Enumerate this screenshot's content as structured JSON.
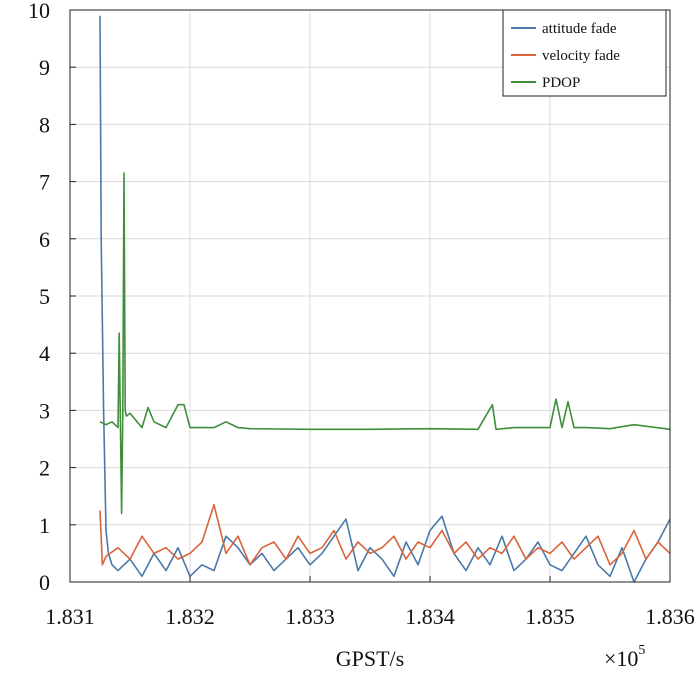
{
  "chart_data": {
    "type": "line",
    "xlabel": "GPST/s",
    "ylabel": "",
    "x_multiplier_label": "×10",
    "x_multiplier_exponent": "5",
    "xlim": [
      1.831,
      1.836
    ],
    "ylim": [
      0,
      10
    ],
    "x_ticks": [
      1.831,
      1.832,
      1.833,
      1.834,
      1.835,
      1.836
    ],
    "x_tick_labels": [
      "1.831",
      "1.832",
      "1.833",
      "1.834",
      "1.835",
      "1.836"
    ],
    "y_ticks": [
      0,
      1,
      2,
      3,
      4,
      5,
      6,
      7,
      8,
      9,
      10
    ],
    "y_tick_labels": [
      "0",
      "1",
      "2",
      "3",
      "4",
      "5",
      "6",
      "7",
      "8",
      "9",
      "10"
    ],
    "grid": true,
    "legend_position": "top-right",
    "series": [
      {
        "name": "attitude fade",
        "color": "#4a79a9",
        "x": [
          1.83125,
          1.83126,
          1.83128,
          1.8313,
          1.83132,
          1.83135,
          1.8314,
          1.8315,
          1.8316,
          1.8317,
          1.8318,
          1.8319,
          1.832,
          1.8321,
          1.8322,
          1.8323,
          1.8324,
          1.8325,
          1.8326,
          1.8327,
          1.8328,
          1.8329,
          1.833,
          1.8331,
          1.8332,
          1.8333,
          1.8334,
          1.8335,
          1.8336,
          1.8337,
          1.8338,
          1.8339,
          1.834,
          1.8341,
          1.8342,
          1.8343,
          1.8344,
          1.8345,
          1.8346,
          1.8347,
          1.8348,
          1.8349,
          1.835,
          1.8351,
          1.8352,
          1.8353,
          1.8354,
          1.8355,
          1.8356,
          1.8357,
          1.8358,
          1.8359,
          1.836
        ],
        "values": [
          9.9,
          6.0,
          3.0,
          0.9,
          0.5,
          0.3,
          0.2,
          0.4,
          0.1,
          0.5,
          0.2,
          0.6,
          0.1,
          0.3,
          0.2,
          0.8,
          0.6,
          0.3,
          0.5,
          0.2,
          0.4,
          0.6,
          0.3,
          0.5,
          0.8,
          1.1,
          0.2,
          0.6,
          0.4,
          0.1,
          0.7,
          0.3,
          0.9,
          1.15,
          0.5,
          0.2,
          0.6,
          0.3,
          0.8,
          0.2,
          0.4,
          0.7,
          0.3,
          0.2,
          0.5,
          0.8,
          0.3,
          0.1,
          0.6,
          0.0,
          0.4,
          0.7,
          1.1
        ]
      },
      {
        "name": "velocity fade",
        "color": "#d9643a",
        "x": [
          1.83125,
          1.83127,
          1.8313,
          1.8314,
          1.8315,
          1.8316,
          1.8317,
          1.8318,
          1.8319,
          1.832,
          1.8321,
          1.8322,
          1.8323,
          1.8324,
          1.8325,
          1.8326,
          1.8327,
          1.8328,
          1.8329,
          1.833,
          1.8331,
          1.8332,
          1.8333,
          1.8334,
          1.8335,
          1.8336,
          1.8337,
          1.8338,
          1.8339,
          1.834,
          1.8341,
          1.8342,
          1.8343,
          1.8344,
          1.8345,
          1.8346,
          1.8347,
          1.8348,
          1.8349,
          1.835,
          1.8351,
          1.8352,
          1.8353,
          1.8354,
          1.8355,
          1.8356,
          1.8357,
          1.8358,
          1.8359,
          1.836
        ],
        "values": [
          1.25,
          0.3,
          0.45,
          0.6,
          0.4,
          0.8,
          0.5,
          0.6,
          0.4,
          0.5,
          0.7,
          1.35,
          0.5,
          0.8,
          0.3,
          0.6,
          0.7,
          0.4,
          0.8,
          0.5,
          0.6,
          0.9,
          0.4,
          0.7,
          0.5,
          0.6,
          0.8,
          0.4,
          0.7,
          0.6,
          0.9,
          0.5,
          0.7,
          0.4,
          0.6,
          0.5,
          0.8,
          0.4,
          0.6,
          0.5,
          0.7,
          0.4,
          0.6,
          0.8,
          0.3,
          0.5,
          0.9,
          0.4,
          0.7,
          0.5
        ]
      },
      {
        "name": "PDOP",
        "color": "#3f8f3a",
        "x": [
          1.83125,
          1.8313,
          1.83135,
          1.8314,
          1.83141,
          1.83142,
          1.83143,
          1.83144,
          1.83145,
          1.83146,
          1.83147,
          1.8315,
          1.8316,
          1.83165,
          1.8317,
          1.8318,
          1.8319,
          1.83195,
          1.832,
          1.8321,
          1.8322,
          1.8323,
          1.8324,
          1.8325,
          1.833,
          1.8335,
          1.834,
          1.8344,
          1.83452,
          1.83455,
          1.8347,
          1.8349,
          1.835,
          1.83505,
          1.8351,
          1.83515,
          1.8352,
          1.8353,
          1.8355,
          1.8357,
          1.836
        ],
        "values": [
          2.8,
          2.75,
          2.8,
          2.7,
          4.35,
          2.8,
          1.2,
          3.0,
          7.15,
          3.0,
          2.9,
          2.95,
          2.7,
          3.05,
          2.8,
          2.7,
          3.1,
          3.1,
          2.7,
          2.7,
          2.7,
          2.8,
          2.7,
          2.68,
          2.67,
          2.67,
          2.68,
          2.67,
          3.1,
          2.67,
          2.7,
          2.7,
          2.7,
          3.2,
          2.7,
          3.15,
          2.7,
          2.7,
          2.68,
          2.75,
          2.67
        ]
      }
    ]
  }
}
